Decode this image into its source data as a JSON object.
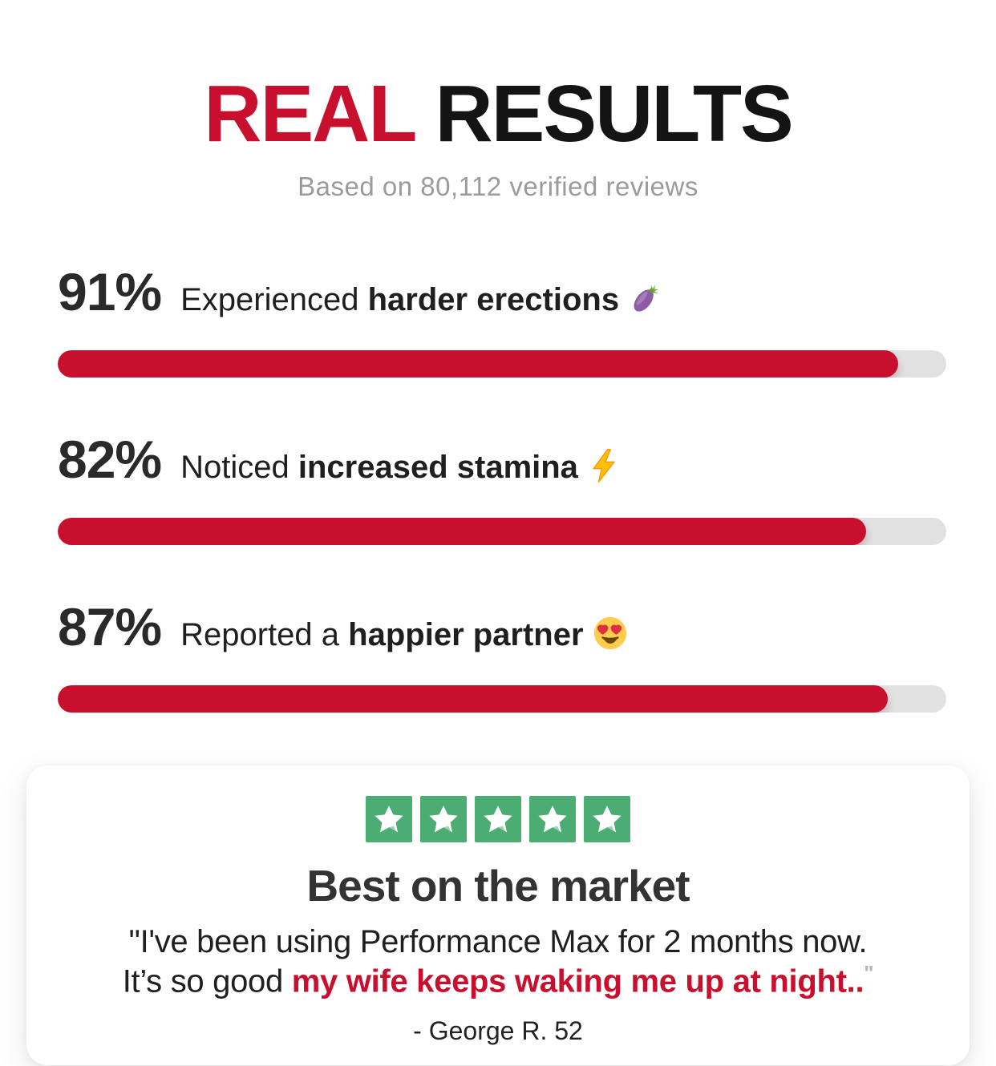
{
  "theme": {
    "accent_red": "#c8102e",
    "text_dark": "#141414",
    "subtitle_gray": "#9b9b9b",
    "bar_track_gray": "#e1e1e1",
    "star_green": "#4cad72",
    "card_background": "#ffffff"
  },
  "header": {
    "title_accent": "REAL",
    "title_rest": "RESULTS",
    "subtitle": "Based on 80,112 verified reviews"
  },
  "chart_data": {
    "type": "bar",
    "title": "REAL RESULTS",
    "subtitle": "Based on 80,112 verified reviews",
    "categories": [
      "Experienced harder erections",
      "Noticed increased stamina",
      "Reported a happier partner"
    ],
    "values": [
      91,
      82,
      87
    ],
    "unit": "%",
    "bar_color": "#c8102e",
    "track_color": "#e1e1e1",
    "visual_fill_percents": [
      94.6,
      91.0,
      93.4
    ],
    "legend": "none",
    "grid": "off"
  },
  "stats": [
    {
      "percent": "91%",
      "label_regular": "Experienced",
      "label_bold": "harder erections",
      "emoji": "eggplant-emoji",
      "value": 91,
      "bar_fill_percent": 94.6
    },
    {
      "percent": "82%",
      "label_regular": "Noticed",
      "label_bold": "increased stamina",
      "emoji": "lightning-bolt-emoji",
      "value": 82,
      "bar_fill_percent": 91.0
    },
    {
      "percent": "87%",
      "label_regular": "Reported a",
      "label_bold": "happier partner",
      "emoji": "heart-eyes-emoji",
      "value": 87,
      "bar_fill_percent": 93.4
    }
  ],
  "testimonial": {
    "rating_stars": 5,
    "heading": "Best on the market",
    "quote_line1": "\"I've been using Performance Max for 2 months now.",
    "quote_line2_regular": "It’s so good ",
    "quote_line2_highlight": "my wife keeps waking me up at night..",
    "closing_quote": "\"",
    "attribution": "- George R. 52"
  }
}
